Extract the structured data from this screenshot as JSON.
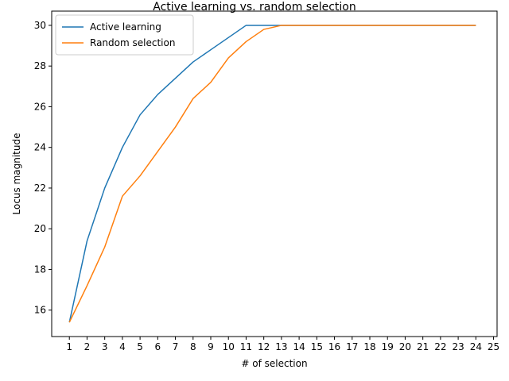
{
  "chart_data": {
    "type": "line",
    "title": "Active learning vs. random selection",
    "xlabel": "# of selection",
    "ylabel": "Locus magnitude",
    "xlim": [
      0.0,
      25.2
    ],
    "ylim": [
      14.7,
      30.7
    ],
    "xticks": [
      1,
      2,
      3,
      4,
      5,
      6,
      7,
      8,
      9,
      10,
      11,
      12,
      13,
      14,
      15,
      16,
      17,
      18,
      19,
      20,
      21,
      22,
      23,
      24,
      25
    ],
    "yticks": [
      16,
      18,
      20,
      22,
      24,
      26,
      28,
      30
    ],
    "grid": false,
    "legend_position": "top-left",
    "x": [
      1,
      2,
      3,
      4,
      5,
      6,
      7,
      8,
      9,
      10,
      11,
      12,
      13,
      14,
      15,
      16,
      17,
      18,
      19,
      20,
      21,
      22,
      23,
      24
    ],
    "series": [
      {
        "name": "Active learning",
        "color": "#1f77b4",
        "values": [
          15.4,
          19.4,
          22.0,
          24.0,
          25.6,
          26.6,
          27.4,
          28.2,
          28.8,
          29.4,
          30.0,
          30.0,
          30.0,
          30.0,
          30.0,
          30.0,
          30.0,
          30.0,
          30.0,
          30.0,
          30.0,
          30.0,
          30.0,
          30.0
        ]
      },
      {
        "name": "Random selection",
        "color": "#ff7f0e",
        "values": [
          15.4,
          17.2,
          19.1,
          21.6,
          22.6,
          23.8,
          25.0,
          26.4,
          27.2,
          28.4,
          29.2,
          29.8,
          30.0,
          30.0,
          30.0,
          30.0,
          30.0,
          30.0,
          30.0,
          30.0,
          30.0,
          30.0,
          30.0,
          30.0
        ]
      }
    ]
  }
}
